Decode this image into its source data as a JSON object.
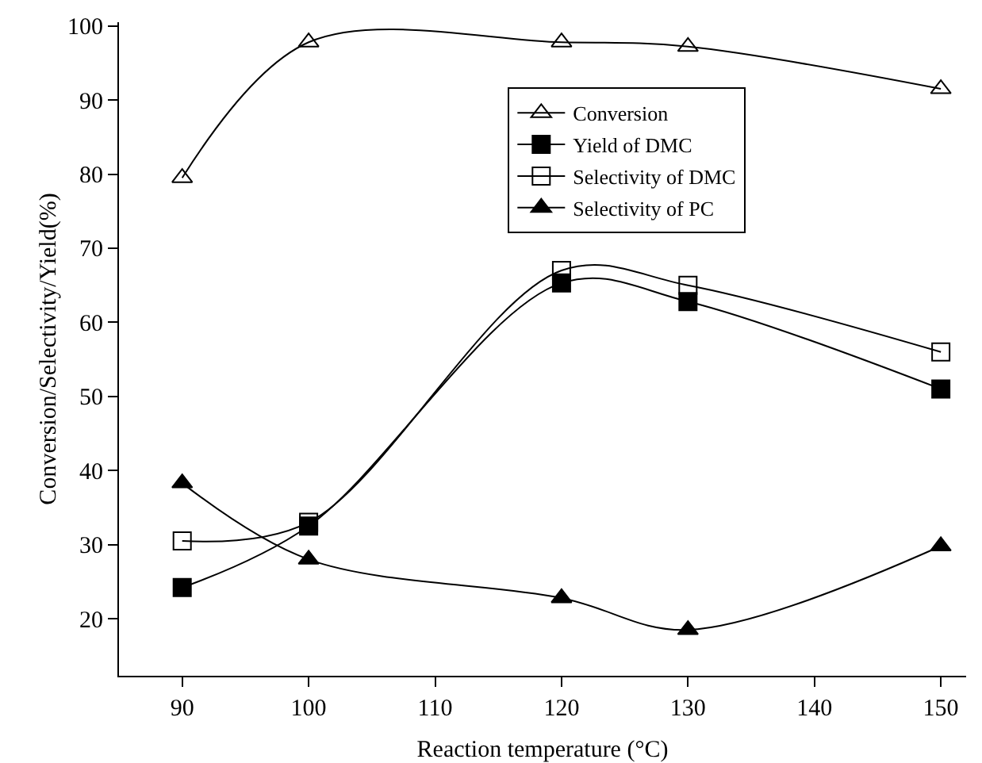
{
  "chart_data": {
    "type": "line",
    "xlabel": "Reaction temperature (°C)",
    "ylabel": "Conversion/Selectivity/Yield(%)",
    "x": [
      90,
      100,
      120,
      130,
      150
    ],
    "series": [
      {
        "name": "Conversion",
        "color": "#000000",
        "marker": "triangle-open",
        "values": [
          79.5,
          97.8,
          97.8,
          97.2,
          91.5
        ]
      },
      {
        "name": "Yield of DMC",
        "color": "#000000",
        "marker": "square",
        "values": [
          24.2,
          32.5,
          65.3,
          62.8,
          51
        ]
      },
      {
        "name": "Selectivity of DMC",
        "color": "#000000",
        "marker": "square-open",
        "values": [
          30.5,
          33,
          67,
          65,
          56
        ]
      },
      {
        "name": "Selectivity of PC",
        "color": "#000000",
        "marker": "triangle",
        "values": [
          38.3,
          28,
          22.8,
          18.5,
          29.8
        ]
      }
    ],
    "xlim": [
      85,
      152
    ],
    "xticks": [
      90,
      100,
      110,
      120,
      130,
      140,
      150
    ],
    "ylim": [
      12.3,
      100.5
    ],
    "yticks": [
      20,
      30,
      40,
      50,
      60,
      70,
      80,
      90,
      100
    ],
    "grid": false,
    "legend": "top right",
    "line_style": "solid"
  }
}
